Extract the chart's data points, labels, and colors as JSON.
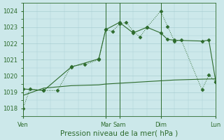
{
  "background_color": "#cce8ea",
  "grid_color": "#aacfd2",
  "line_color": "#2d6b2d",
  "ylabel": "Pression niveau de la mer( hPa )",
  "ylim": [
    1017.5,
    1024.5
  ],
  "yticks": [
    1018,
    1019,
    1020,
    1021,
    1022,
    1023,
    1024
  ],
  "xlim": [
    0,
    14
  ],
  "xtick_positions": [
    0,
    6,
    7,
    10,
    14
  ],
  "xtick_labels": [
    "Ven",
    "Mar",
    "Sam",
    "Dim",
    "Lun"
  ],
  "vline_positions": [
    0,
    6,
    7,
    10,
    14
  ],
  "line1_x": [
    0,
    0.5,
    1.5,
    2.5,
    3.5,
    4.5,
    5.5,
    6.0,
    6.5,
    7.0,
    7.5,
    8.0,
    8.5,
    9.0,
    10.0,
    10.5,
    11.0,
    11.5,
    13.0,
    13.5,
    14.0
  ],
  "line1_y": [
    1018.0,
    1019.2,
    1019.1,
    1019.1,
    1020.6,
    1020.7,
    1021.0,
    1022.85,
    1022.75,
    1023.2,
    1023.3,
    1022.75,
    1022.4,
    1023.0,
    1024.0,
    1023.05,
    1022.15,
    1022.2,
    1019.15,
    1020.05,
    1019.65
  ],
  "line2_x": [
    0,
    1.5,
    3.5,
    5.5,
    6.0,
    7.0,
    8.0,
    9.0,
    10.0,
    10.5,
    11.0,
    13.0,
    13.5,
    14.0
  ],
  "line2_y": [
    1019.2,
    1019.1,
    1020.55,
    1021.05,
    1022.85,
    1023.3,
    1022.65,
    1023.0,
    1022.65,
    1022.25,
    1022.2,
    1022.15,
    1022.2,
    1019.65
  ],
  "line3_x": [
    0,
    1.5,
    3.5,
    5.5,
    6.0,
    7.0,
    8.0,
    9.0,
    10.0,
    11.0,
    13.0,
    14.0
  ],
  "line3_y": [
    1018.8,
    1019.25,
    1019.4,
    1019.45,
    1019.5,
    1019.55,
    1019.6,
    1019.65,
    1019.7,
    1019.75,
    1019.8,
    1019.82
  ],
  "tick_fontsize": 6.0,
  "xlabel_fontsize": 7.5
}
